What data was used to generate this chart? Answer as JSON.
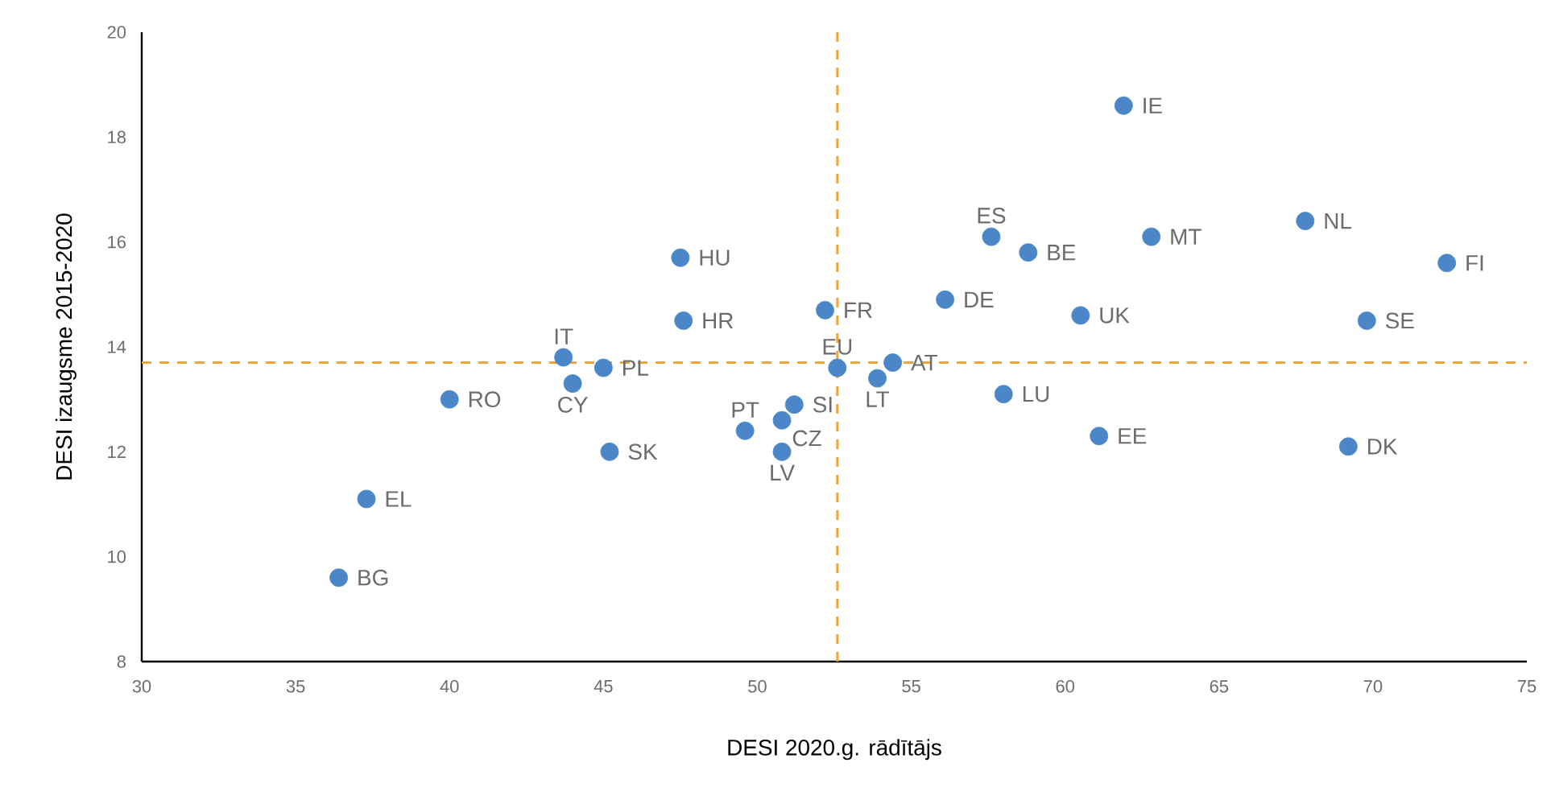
{
  "chart_data": {
    "type": "scatter",
    "xlabel": "DESI 2020.g. rādītājs",
    "ylabel": "DESI izaugsme 2015-2020",
    "xlim": [
      30,
      75
    ],
    "xticks": [
      30,
      35,
      40,
      45,
      50,
      55,
      60,
      65,
      70,
      75
    ],
    "ylim": [
      8,
      20
    ],
    "yticks": [
      8,
      10,
      12,
      14,
      16,
      18,
      20
    ],
    "grid": false,
    "marker": "circle",
    "series": [
      {
        "color": "#4a86c8",
        "x": [
          61.9,
          57.6,
          58.8,
          62.8,
          67.8,
          72.4,
          56.1,
          60.5,
          69.8,
          54.4,
          53.9,
          52.6,
          58.0,
          61.1,
          69.2,
          52.2,
          47.5,
          47.6,
          43.7,
          45.0,
          44.0,
          40.0,
          45.2,
          49.6,
          51.2,
          50.8,
          50.8,
          37.3,
          36.4
        ],
        "values": [
          18.6,
          16.1,
          15.8,
          16.1,
          16.4,
          15.6,
          14.9,
          14.6,
          14.5,
          13.7,
          13.4,
          13.6,
          13.1,
          12.3,
          12.1,
          14.7,
          15.7,
          14.5,
          13.8,
          13.6,
          13.3,
          13.0,
          12.0,
          12.4,
          12.9,
          12.6,
          12.0,
          11.1,
          9.6
        ]
      }
    ],
    "ref_lines": [
      {
        "axis": "x",
        "value": 52.6,
        "color": "#f0a43a",
        "line_style": "dashed"
      },
      {
        "axis": "y",
        "value": 13.7,
        "color": "#f0a43a",
        "line_style": "dashed"
      }
    ],
    "annotations": [
      {
        "text": "IE",
        "x": 61.9,
        "y": 18.6
      },
      {
        "text": "ES",
        "x": 57.6,
        "y": 16.1
      },
      {
        "text": "BE",
        "x": 58.8,
        "y": 15.8
      },
      {
        "text": "MT",
        "x": 62.8,
        "y": 16.1
      },
      {
        "text": "NL",
        "x": 67.8,
        "y": 16.4
      },
      {
        "text": "FI",
        "x": 72.4,
        "y": 15.6
      },
      {
        "text": "DE",
        "x": 56.1,
        "y": 14.9
      },
      {
        "text": "UK",
        "x": 60.5,
        "y": 14.6
      },
      {
        "text": "SE",
        "x": 69.8,
        "y": 14.5
      },
      {
        "text": "AT",
        "x": 54.4,
        "y": 13.7
      },
      {
        "text": "LT",
        "x": 53.9,
        "y": 13.4
      },
      {
        "text": "EU",
        "x": 52.6,
        "y": 13.6
      },
      {
        "text": "LU",
        "x": 58.0,
        "y": 13.1
      },
      {
        "text": "EE",
        "x": 61.1,
        "y": 12.3
      },
      {
        "text": "DK",
        "x": 69.2,
        "y": 12.1
      },
      {
        "text": "FR",
        "x": 52.2,
        "y": 14.7
      },
      {
        "text": "HU",
        "x": 47.5,
        "y": 15.7
      },
      {
        "text": "HR",
        "x": 47.6,
        "y": 14.5
      },
      {
        "text": "IT",
        "x": 43.7,
        "y": 13.8
      },
      {
        "text": "PL",
        "x": 45.0,
        "y": 13.6
      },
      {
        "text": "CY",
        "x": 44.0,
        "y": 13.3
      },
      {
        "text": "RO",
        "x": 40.0,
        "y": 13.0
      },
      {
        "text": "SK",
        "x": 45.2,
        "y": 12.0
      },
      {
        "text": "PT",
        "x": 49.6,
        "y": 12.4
      },
      {
        "text": "SI",
        "x": 51.2,
        "y": 12.9
      },
      {
        "text": "CZ",
        "x": 50.8,
        "y": 12.6
      },
      {
        "text": "LV",
        "x": 50.8,
        "y": 12.0
      },
      {
        "text": "EL",
        "x": 37.3,
        "y": 11.1
      },
      {
        "text": "BG",
        "x": 36.4,
        "y": 9.6
      }
    ]
  }
}
